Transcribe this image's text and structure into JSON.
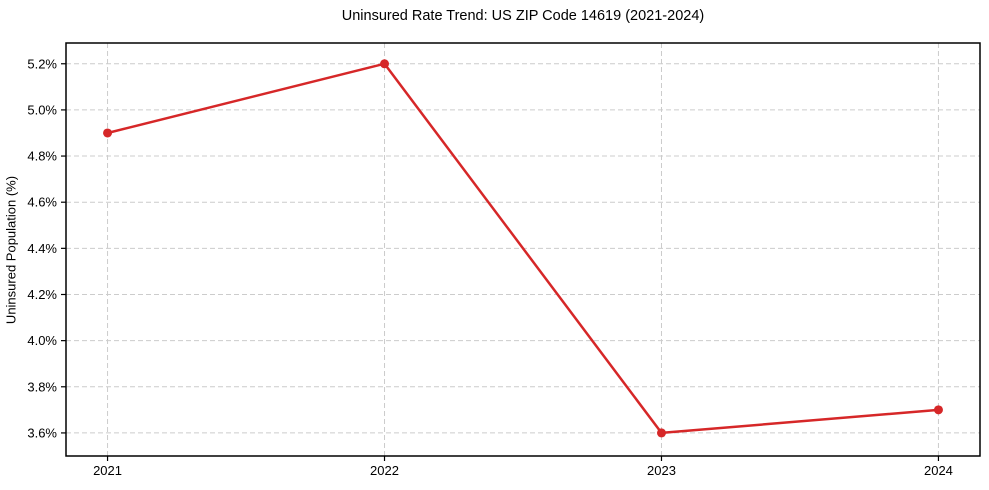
{
  "chart_data": {
    "type": "line",
    "title": "Uninsured Rate Trend: US ZIP Code 14619 (2021-2024)",
    "ylabel": "Uninsured Population (%)",
    "xlabel": "",
    "x": [
      2021,
      2022,
      2023,
      2024
    ],
    "x_tick_labels": [
      "2021",
      "2022",
      "2023",
      "2024"
    ],
    "values": [
      4.9,
      5.2,
      3.6,
      3.7
    ],
    "y_ticks": [
      3.6,
      3.8,
      4.0,
      4.2,
      4.4,
      4.6,
      4.8,
      5.0,
      5.2
    ],
    "y_tick_labels": [
      "3.6%",
      "3.8%",
      "4.0%",
      "4.2%",
      "4.4%",
      "4.6%",
      "4.8%",
      "5.0%",
      "5.2%"
    ],
    "xlim": [
      2020.85,
      2024.15
    ],
    "ylim": [
      3.5,
      5.29
    ],
    "grid": true,
    "grid_style": "dashed",
    "legend": false,
    "marker": "circle",
    "colors": {
      "line": "#d62728",
      "marker": "#d62728",
      "grid": "#cccccc",
      "spine": "#000000",
      "text": "#000000",
      "background": "#ffffff"
    }
  }
}
